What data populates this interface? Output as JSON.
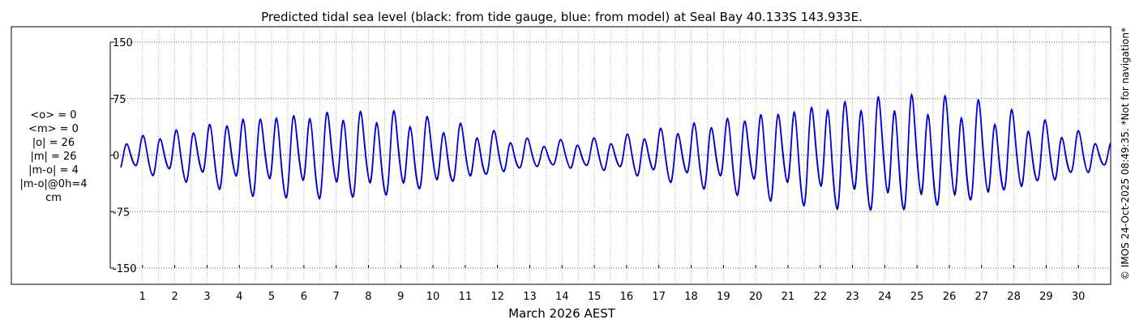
{
  "chart_data": {
    "type": "line",
    "title": "Predicted tidal sea level (black: from tide gauge, blue: from model) at Seal Bay 40.133S 143.933E.",
    "xlabel": "March 2026 AEST",
    "ylabel": "",
    "xlim": [
      0,
      31
    ],
    "ylim": [
      -150,
      150
    ],
    "y_ticks": [
      150,
      75,
      0,
      -75,
      -150
    ],
    "x_ticks": [
      1,
      2,
      3,
      4,
      5,
      6,
      7,
      8,
      9,
      10,
      11,
      12,
      13,
      14,
      15,
      16,
      17,
      18,
      19,
      20,
      21,
      22,
      23,
      24,
      25,
      26,
      27,
      28,
      29,
      30
    ],
    "grid": true,
    "stats": [
      "<o> = 0",
      "<m> = 0",
      "|o| = 26",
      "|m| = 26",
      "|m-o| = 4",
      "|m-o|@0h=4",
      "cm"
    ],
    "credit": "© IMOS 24-Oct-2025 08:49:35. *Not for navigation*",
    "series": [
      {
        "name": "from tide gauge",
        "color": "#000000",
        "days": [
          0.33,
          31
        ],
        "M2_amp": [
          14,
          28,
          44,
          48,
          46,
          30,
          14,
          18,
          32,
          46,
          58,
          64,
          58,
          36,
          14
        ],
        "mean": 0,
        "phase_deg": 0
      },
      {
        "name": "from model",
        "color": "#0000ff",
        "days": [
          0.33,
          31
        ],
        "M2_amp": [
          14,
          28,
          44,
          48,
          46,
          30,
          14,
          18,
          32,
          46,
          58,
          64,
          58,
          36,
          14
        ],
        "mean": 0,
        "phase_deg": 0
      }
    ]
  }
}
